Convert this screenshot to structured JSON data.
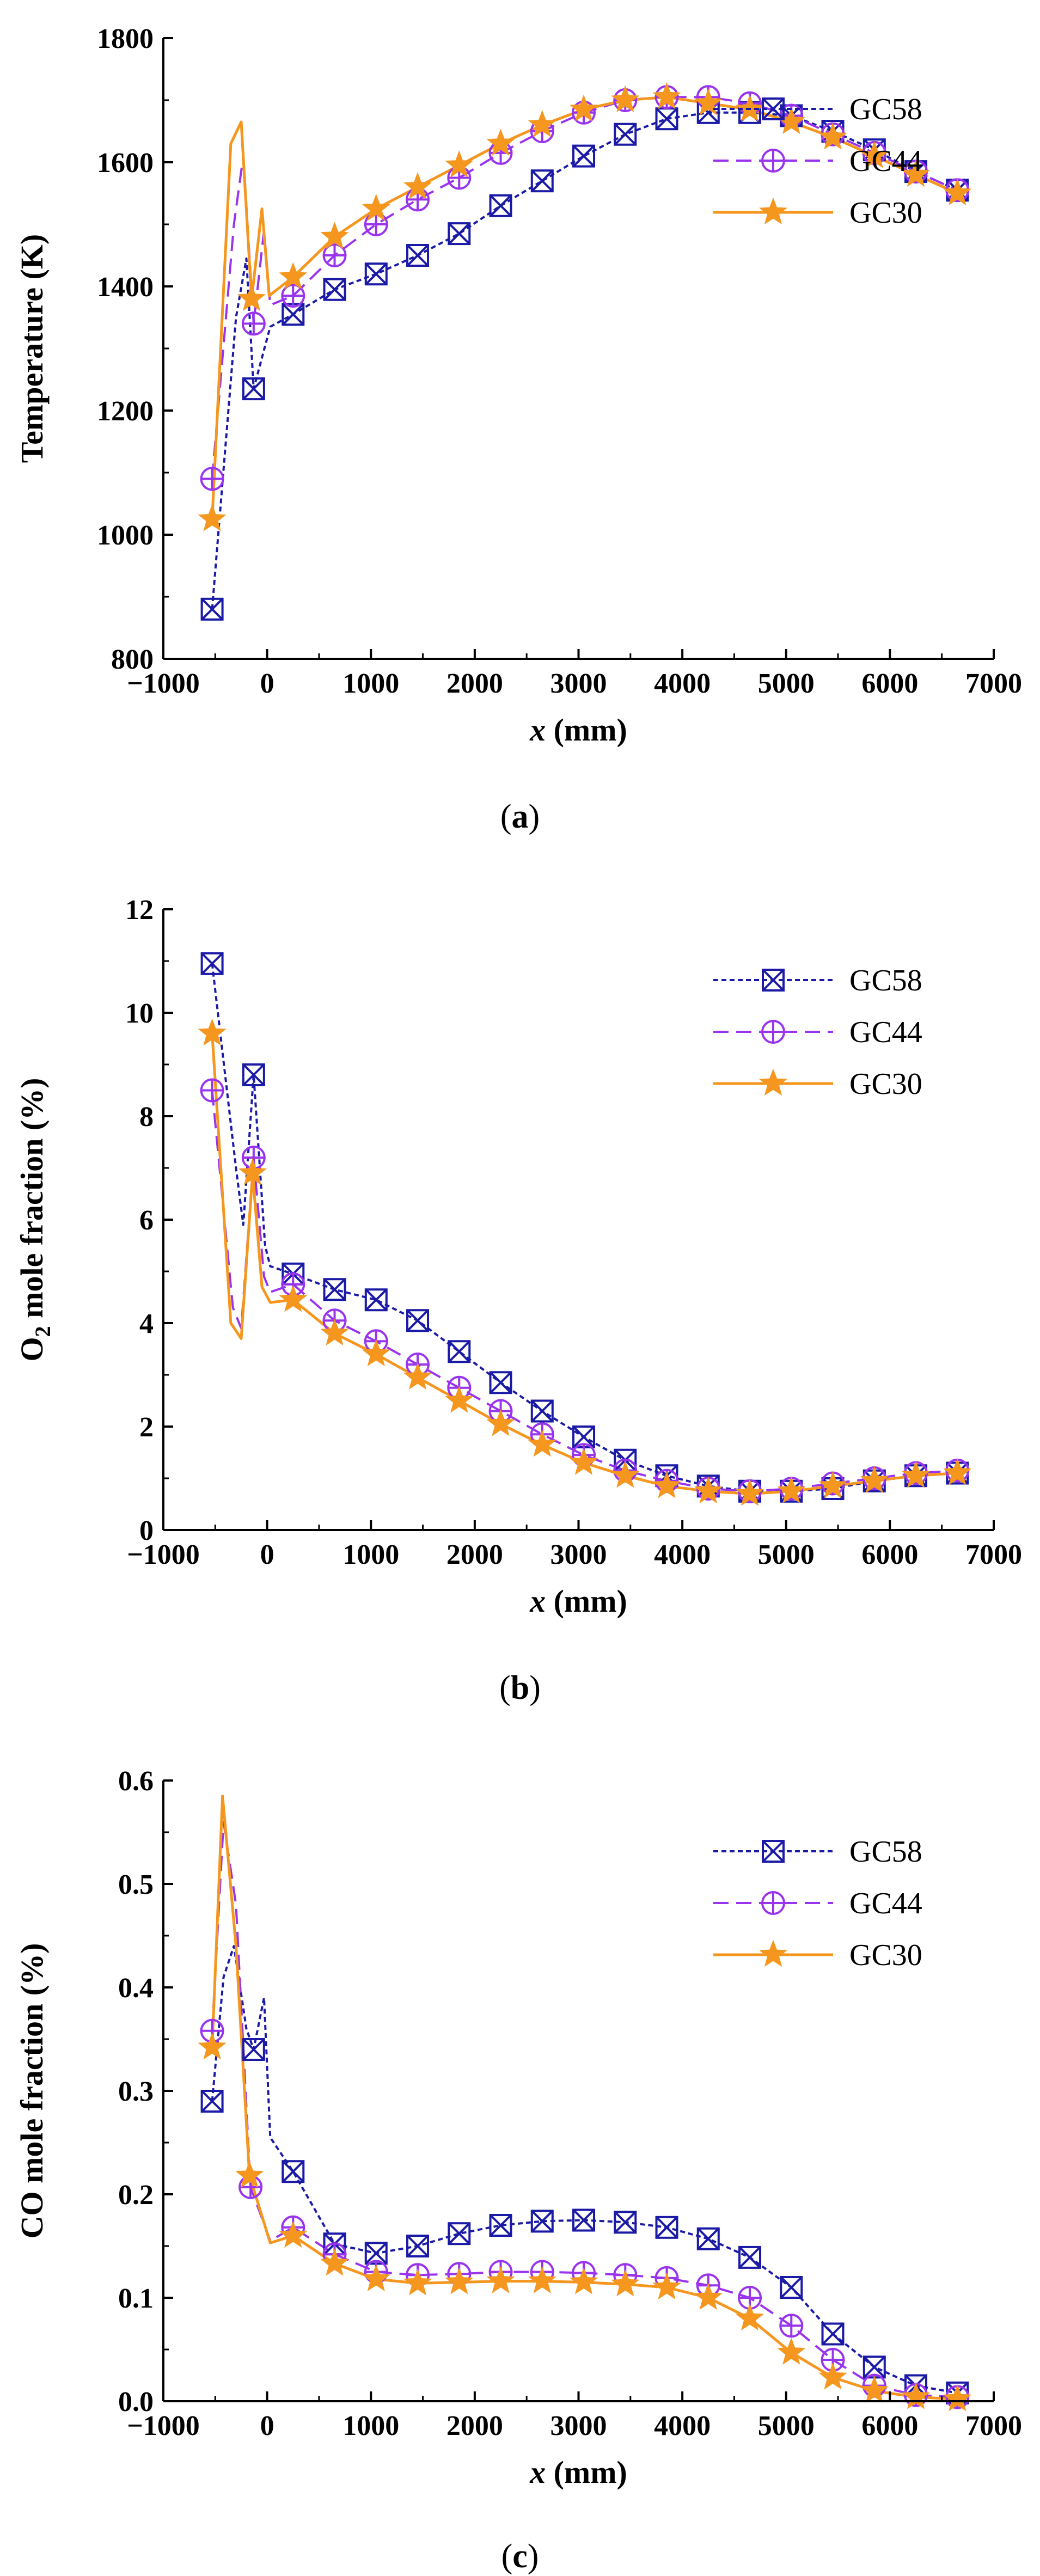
{
  "colors": {
    "GC58": "#1a1aa6",
    "GC44": "#9933ee",
    "GC30": "#f5961e",
    "axis": "#000000"
  },
  "chart_data": [
    {
      "type": "line",
      "panel_label": [
        "(",
        "a",
        ")"
      ],
      "xlabel": {
        "var": "x",
        "unit": " (mm)"
      },
      "ylabel": {
        "main": "Temperature (K)",
        "sub": "",
        "tail": ""
      },
      "xlim": [
        -1000,
        7000
      ],
      "xticks": [
        -1000,
        0,
        1000,
        2000,
        3000,
        4000,
        5000,
        6000,
        7000
      ],
      "xtick_labels": [
        "−1000",
        "0",
        "1000",
        "2000",
        "3000",
        "4000",
        "5000",
        "6000",
        "7000"
      ],
      "ylim": [
        800,
        1800
      ],
      "yticks": [
        800,
        1000,
        1200,
        1400,
        1600,
        1800
      ],
      "ytick_labels": [
        "800",
        "1000",
        "1200",
        "1400",
        "1600",
        "1800"
      ],
      "legend": "top-right",
      "series": [
        {
          "name": "GC58",
          "color": "#1a1aa6",
          "dash": "9,6",
          "marker": "square-x",
          "x": [
            -530,
            -300,
            -200,
            -130,
            30,
            250,
            650,
            1050,
            1450,
            1850,
            2250,
            2650,
            3050,
            3450,
            3850,
            4250,
            4650,
            5050,
            5450,
            5850,
            6250,
            6650
          ],
          "values": [
            880,
            1350,
            1445,
            1235,
            1335,
            1355,
            1395,
            1420,
            1450,
            1485,
            1530,
            1570,
            1610,
            1645,
            1670,
            1680,
            1680,
            1675,
            1650,
            1620,
            1585,
            1555
          ]
        },
        {
          "name": "GC44",
          "color": "#9933ee",
          "dash": "28,14",
          "marker": "circle-plus",
          "x": [
            -530,
            -320,
            -230,
            -130,
            -30,
            30,
            250,
            650,
            1050,
            1450,
            1850,
            2250,
            2650,
            3050,
            3450,
            3850,
            4250,
            4650,
            5050,
            5450,
            5850,
            6250,
            6650
          ],
          "values": [
            1090,
            1500,
            1610,
            1340,
            1490,
            1370,
            1385,
            1450,
            1500,
            1540,
            1575,
            1615,
            1650,
            1680,
            1700,
            1705,
            1705,
            1695,
            1675,
            1645,
            1615,
            1585,
            1555
          ]
        },
        {
          "name": "GC30",
          "color": "#f5961e",
          "dash": "",
          "marker": "star",
          "x": [
            -530,
            -350,
            -250,
            -150,
            -50,
            20,
            250,
            650,
            1050,
            1450,
            1850,
            2250,
            2650,
            3050,
            3450,
            3850,
            4250,
            4650,
            5050,
            5450,
            5850,
            6250,
            6650
          ],
          "values": [
            1025,
            1630,
            1665,
            1380,
            1525,
            1385,
            1415,
            1480,
            1525,
            1560,
            1595,
            1630,
            1660,
            1685,
            1700,
            1705,
            1695,
            1685,
            1665,
            1640,
            1610,
            1580,
            1550
          ]
        }
      ]
    },
    {
      "type": "line",
      "panel_label": [
        "(",
        "b",
        ")"
      ],
      "xlabel": {
        "var": "x",
        "unit": " (mm)"
      },
      "ylabel": {
        "main": "O",
        "sub": "2",
        "tail": " mole fraction (%)"
      },
      "xlim": [
        -1000,
        7000
      ],
      "xticks": [
        -1000,
        0,
        1000,
        2000,
        3000,
        4000,
        5000,
        6000,
        7000
      ],
      "xtick_labels": [
        "−1000",
        "0",
        "1000",
        "2000",
        "3000",
        "4000",
        "5000",
        "6000",
        "7000"
      ],
      "ylim": [
        0,
        12
      ],
      "yticks": [
        0,
        2,
        4,
        6,
        8,
        10,
        12
      ],
      "ytick_labels": [
        "0",
        "2",
        "4",
        "6",
        "8",
        "10",
        "12"
      ],
      "legend": "top-right",
      "series": [
        {
          "name": "GC58",
          "color": "#1a1aa6",
          "dash": "9,6",
          "marker": "square-x",
          "x": [
            -530,
            -300,
            -230,
            -130,
            -20,
            30,
            250,
            650,
            1050,
            1450,
            1850,
            2250,
            2650,
            3050,
            3450,
            3850,
            4250,
            4650,
            5050,
            5450,
            5850,
            6250,
            6650
          ],
          "values": [
            10.95,
            7.0,
            5.9,
            8.8,
            5.5,
            5.1,
            4.95,
            4.65,
            4.45,
            4.05,
            3.45,
            2.85,
            2.3,
            1.8,
            1.35,
            1.05,
            0.85,
            0.75,
            0.75,
            0.8,
            0.95,
            1.05,
            1.1
          ]
        },
        {
          "name": "GC44",
          "color": "#9933ee",
          "dash": "28,14",
          "marker": "circle-plus",
          "x": [
            -530,
            -330,
            -250,
            -130,
            -30,
            30,
            250,
            650,
            1050,
            1450,
            1850,
            2250,
            2650,
            3050,
            3450,
            3850,
            4250,
            4650,
            5050,
            5450,
            5850,
            6250,
            6650
          ],
          "values": [
            8.5,
            4.3,
            3.9,
            7.2,
            4.9,
            4.6,
            4.75,
            4.05,
            3.65,
            3.2,
            2.75,
            2.3,
            1.85,
            1.45,
            1.15,
            0.95,
            0.8,
            0.75,
            0.8,
            0.9,
            1.0,
            1.1,
            1.15
          ]
        },
        {
          "name": "GC30",
          "color": "#f5961e",
          "dash": "",
          "marker": "star",
          "x": [
            -530,
            -350,
            -250,
            -140,
            -50,
            30,
            250,
            650,
            1050,
            1450,
            1850,
            2250,
            2650,
            3050,
            3450,
            3850,
            4250,
            4650,
            5050,
            5450,
            5850,
            6250,
            6650
          ],
          "values": [
            9.6,
            4.0,
            3.7,
            6.9,
            4.7,
            4.4,
            4.45,
            3.8,
            3.4,
            2.95,
            2.5,
            2.05,
            1.65,
            1.3,
            1.05,
            0.85,
            0.75,
            0.7,
            0.75,
            0.85,
            0.95,
            1.05,
            1.1
          ]
        }
      ]
    },
    {
      "type": "line",
      "panel_label": [
        "(",
        "c",
        ")"
      ],
      "xlabel": {
        "var": "x",
        "unit": " (mm)"
      },
      "ylabel": {
        "main": "CO mole fraction (%)",
        "sub": "",
        "tail": ""
      },
      "xlim": [
        -1000,
        7000
      ],
      "xticks": [
        -1000,
        0,
        1000,
        2000,
        3000,
        4000,
        5000,
        6000,
        7000
      ],
      "xtick_labels": [
        "−1000",
        "0",
        "1000",
        "2000",
        "3000",
        "4000",
        "5000",
        "6000",
        "7000"
      ],
      "ylim": [
        0,
        0.6
      ],
      "yticks": [
        0,
        0.1,
        0.2,
        0.3,
        0.4,
        0.5,
        0.6
      ],
      "ytick_labels": [
        "0.0",
        "0.1",
        "0.2",
        "0.3",
        "0.4",
        "0.5",
        "0.6"
      ],
      "legend": "top-right",
      "series": [
        {
          "name": "GC58",
          "color": "#1a1aa6",
          "dash": "9,6",
          "marker": "square-x",
          "x": [
            -530,
            -420,
            -320,
            -200,
            -130,
            -30,
            30,
            250,
            650,
            1050,
            1450,
            1850,
            2250,
            2650,
            3050,
            3450,
            3850,
            4250,
            4650,
            5050,
            5450,
            5850,
            6250,
            6650
          ],
          "values": [
            0.29,
            0.41,
            0.44,
            0.36,
            0.34,
            0.39,
            0.255,
            0.222,
            0.152,
            0.143,
            0.15,
            0.162,
            0.17,
            0.174,
            0.175,
            0.173,
            0.168,
            0.157,
            0.139,
            0.11,
            0.065,
            0.033,
            0.015,
            0.008
          ]
        },
        {
          "name": "GC44",
          "color": "#9933ee",
          "dash": "28,14",
          "marker": "circle-plus",
          "x": [
            -530,
            -420,
            -300,
            -160,
            30,
            250,
            650,
            1050,
            1450,
            1850,
            2250,
            2650,
            3050,
            3450,
            3850,
            4250,
            4650,
            5050,
            5450,
            5850,
            6250,
            6650
          ],
          "values": [
            0.358,
            0.56,
            0.48,
            0.207,
            0.155,
            0.168,
            0.142,
            0.125,
            0.122,
            0.123,
            0.125,
            0.125,
            0.124,
            0.122,
            0.119,
            0.112,
            0.1,
            0.073,
            0.04,
            0.015,
            0.006,
            0.004
          ]
        },
        {
          "name": "GC30",
          "color": "#f5961e",
          "dash": "",
          "marker": "star",
          "x": [
            -530,
            -430,
            -300,
            -170,
            30,
            250,
            650,
            1050,
            1450,
            1850,
            2250,
            2650,
            3050,
            3450,
            3850,
            4250,
            4650,
            5050,
            5450,
            5850,
            6250,
            6650
          ],
          "values": [
            0.342,
            0.585,
            0.44,
            0.218,
            0.153,
            0.16,
            0.133,
            0.118,
            0.114,
            0.115,
            0.116,
            0.116,
            0.115,
            0.113,
            0.11,
            0.1,
            0.08,
            0.047,
            0.023,
            0.01,
            0.004,
            0.002
          ]
        }
      ]
    }
  ]
}
